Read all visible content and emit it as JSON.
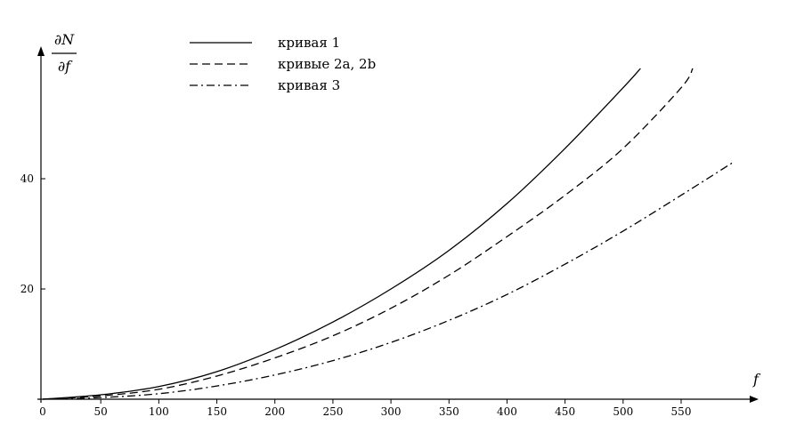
{
  "chart_data": {
    "type": "line",
    "xlabel": "f",
    "ylabel": {
      "numerator": "∂N",
      "denominator": "∂f"
    },
    "xlim": [
      0,
      610
    ],
    "ylim": [
      0,
      61
    ],
    "x_ticks": [
      0,
      50,
      100,
      150,
      200,
      250,
      300,
      350,
      400,
      450,
      500,
      550
    ],
    "y_ticks": [
      20,
      40
    ],
    "grid": false,
    "legend_position": "top-center",
    "series": [
      {
        "name": "кривая 1",
        "style": "solid",
        "x": [
          0,
          50,
          100,
          150,
          200,
          250,
          300,
          350,
          400,
          450,
          500,
          515
        ],
        "y": [
          0,
          0.8,
          2.3,
          5.0,
          9.0,
          14.0,
          20.0,
          27.0,
          35.5,
          45.5,
          56.5,
          60
        ]
      },
      {
        "name": "кривые 2a, 2b",
        "style": "dashed",
        "x": [
          0,
          50,
          100,
          150,
          200,
          250,
          300,
          350,
          400,
          450,
          500,
          550,
          560
        ],
        "y": [
          0,
          0.6,
          1.8,
          4.2,
          7.5,
          11.5,
          16.5,
          22.5,
          29.5,
          37.0,
          45.5,
          56.5,
          60
        ]
      },
      {
        "name": "кривая 3",
        "style": "dashdot",
        "x": [
          0,
          50,
          100,
          150,
          200,
          250,
          300,
          350,
          400,
          450,
          500,
          550,
          595
        ],
        "y": [
          0,
          0.3,
          1.0,
          2.4,
          4.4,
          7.0,
          10.3,
          14.3,
          19.0,
          24.5,
          30.5,
          37.0,
          43.0
        ]
      }
    ]
  }
}
